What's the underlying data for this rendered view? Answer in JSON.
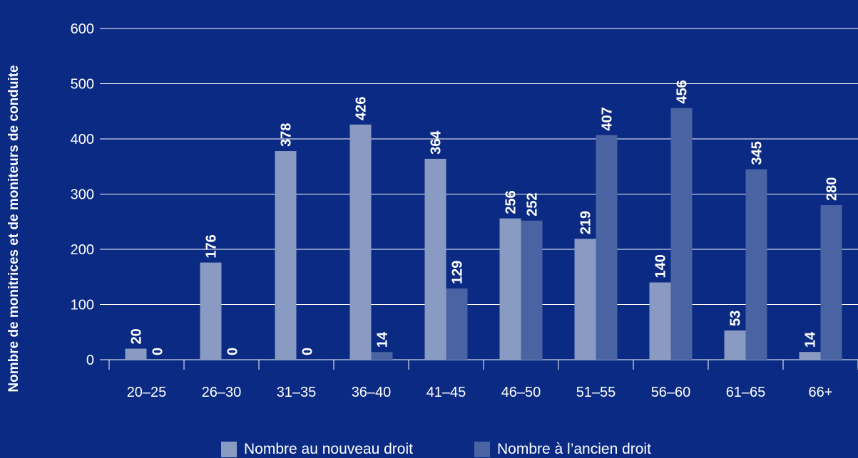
{
  "chart_data": {
    "type": "bar",
    "categories": [
      "20–25",
      "26–30",
      "31–35",
      "36–40",
      "41–45",
      "46–50",
      "51–55",
      "56–60",
      "61–65",
      "66+"
    ],
    "series": [
      {
        "name": "Nombre au nouveau droit",
        "values": [
          20,
          176,
          378,
          426,
          364,
          256,
          219,
          140,
          53,
          14
        ],
        "color": "#8a9bc3"
      },
      {
        "name": "Nombre à l’ancien droit",
        "values": [
          0,
          0,
          0,
          14,
          129,
          252,
          407,
          456,
          345,
          280
        ],
        "color": "#4a63a3"
      }
    ],
    "title": "",
    "xlabel": "",
    "ylabel": "Nombre de monitrices et de moniteurs de conduite",
    "ylim": [
      0,
      600
    ],
    "yticks": [
      0,
      100,
      200,
      300,
      400,
      500,
      600
    ],
    "grid": true,
    "legend_position": "bottom",
    "data_labels": true
  },
  "colors": {
    "background": "#0a2a83",
    "gridline": "#ffffff",
    "text": "#ffffff"
  }
}
